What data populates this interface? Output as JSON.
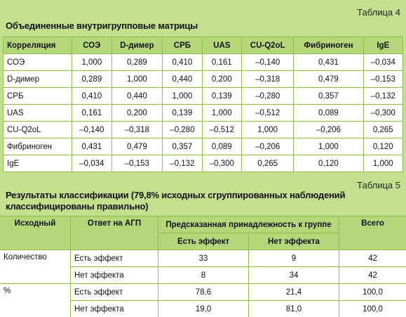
{
  "table4": {
    "caption": "Таблица 4",
    "title": "Объединенные внутригрупповые матрицы",
    "header": [
      "Корреляция",
      "СОЭ",
      "D-димер",
      "СРБ",
      "UAS",
      "CU-Q2oL",
      "Фибриноген",
      "IgE"
    ],
    "rows": [
      [
        "СОЭ",
        "1,000",
        "0,289",
        "0,410",
        "0,161",
        "–0,140",
        "0,431",
        "–0,034"
      ],
      [
        "D-димер",
        "0,289",
        "1,000",
        "0,440",
        "0,200",
        "–0,318",
        "0,479",
        "–0,153"
      ],
      [
        "СРБ",
        "0,410",
        "0,440",
        "1,000",
        "0,139",
        "–0,280",
        "0,357",
        "–0,132"
      ],
      [
        "UAS",
        "0,161",
        "0,200",
        "0,139",
        "1,000",
        "–0,512",
        "0,089",
        "–0,300"
      ],
      [
        "CU-Q2oL",
        "–0,140",
        "–0,318",
        "–0,280",
        "–0,512",
        "1,000",
        "–0,206",
        "0,265"
      ],
      [
        "Фибриноген",
        "0,431",
        "0,479",
        "0,357",
        "0,089",
        "–0,206",
        "1,000",
        "0,120"
      ],
      [
        "IgE",
        "–0,034",
        "–0,153",
        "–0,132",
        "–0,300",
        "0,265",
        "0,120",
        "1,000"
      ]
    ]
  },
  "table5": {
    "caption": "Таблица 5",
    "title": "Результаты классификации (79,8% исходных сгруппированных наблюдений классифицированы правильно)",
    "header": {
      "source": "Исходный",
      "response": "Ответ на АГП",
      "group": "Предсказанная принадлежность к группе",
      "sub": [
        "Есть эффект",
        "Нет эффекта"
      ],
      "total": "Всего"
    },
    "groups": [
      {
        "name": "Количество",
        "rows": [
          [
            "Есть эффект",
            "33",
            "9",
            "42"
          ],
          [
            "Нет эффекта",
            "8",
            "34",
            "42"
          ]
        ]
      },
      {
        "name": "%",
        "rows": [
          [
            "Есть эффект",
            "78,6",
            "21,4",
            "100,0"
          ],
          [
            "Нет эффекта",
            "19,0",
            "81,0",
            "100,0"
          ]
        ]
      }
    ]
  }
}
